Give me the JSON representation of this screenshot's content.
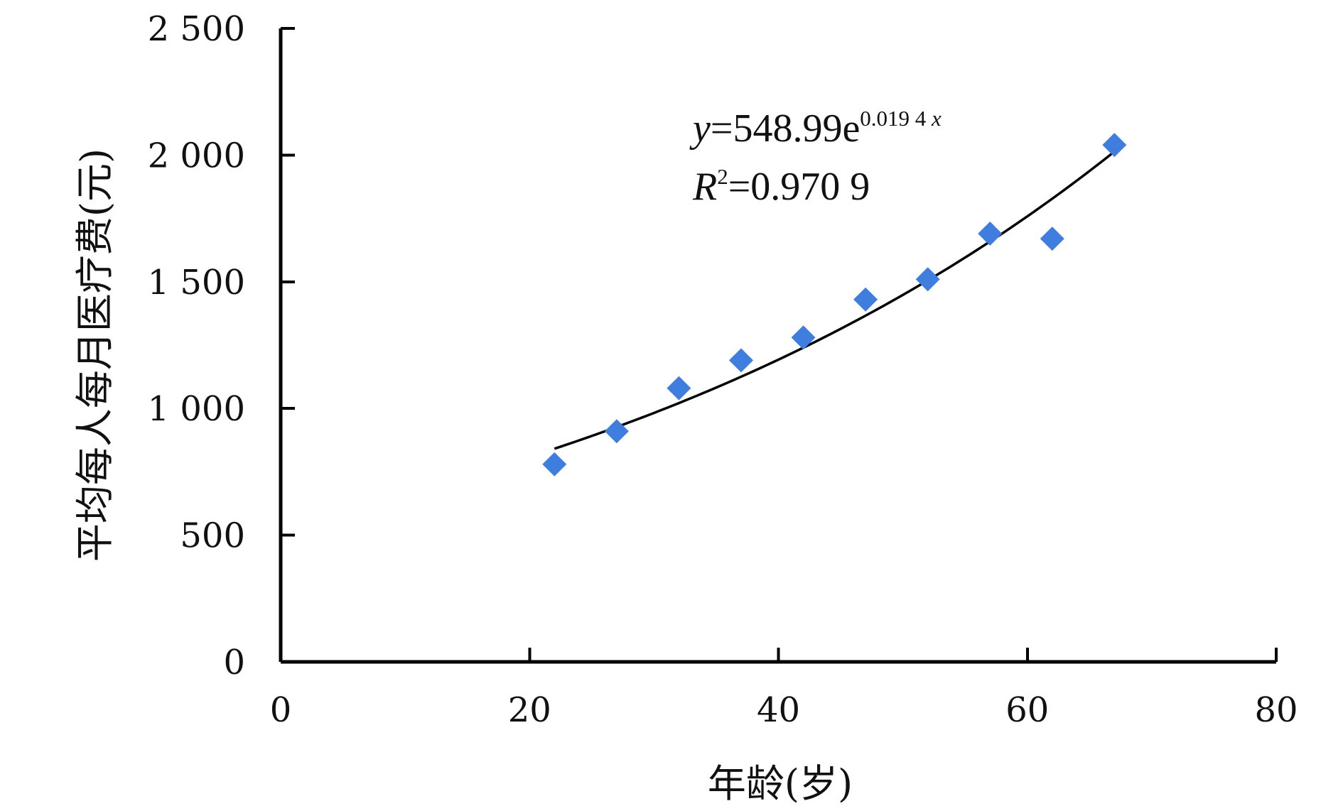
{
  "chart_data": {
    "type": "scatter",
    "title": "",
    "xlabel": "年龄(岁)",
    "ylabel": "平均每人每月医疗费(元)",
    "xlim": [
      0,
      80
    ],
    "ylim": [
      0,
      2500
    ],
    "x_ticks": [
      0,
      20,
      40,
      60,
      80
    ],
    "y_ticks": [
      0,
      500,
      1000,
      1500,
      2000,
      2500
    ],
    "x_tick_labels": [
      "0",
      "20",
      "40",
      "60",
      "80"
    ],
    "y_tick_labels": [
      "0",
      "500",
      "1 000",
      "1 500",
      "2 000",
      "2 500"
    ],
    "grid": false,
    "legend": "none",
    "marker": "diamond",
    "marker_color": "#3f7ede",
    "trendline_color": "#000000",
    "series": [
      {
        "x": [
          22,
          27,
          32,
          37,
          42,
          47,
          52,
          57,
          62,
          67
        ],
        "y": [
          780,
          910,
          1080,
          1190,
          1280,
          1430,
          1510,
          1690,
          1670,
          2040
        ]
      }
    ],
    "trendline": {
      "type": "exponential",
      "a": 548.99,
      "b": 0.0194,
      "x_range": [
        22,
        67
      ]
    },
    "annotations": {
      "equation": {
        "y_symbol": "y",
        "equals_coef": "=548.99e",
        "exponent": "0.019 4 ",
        "exponent_var": "x"
      },
      "r_squared": {
        "symbol": "R",
        "superscript": "2",
        "value": "=0.970 9"
      }
    }
  }
}
